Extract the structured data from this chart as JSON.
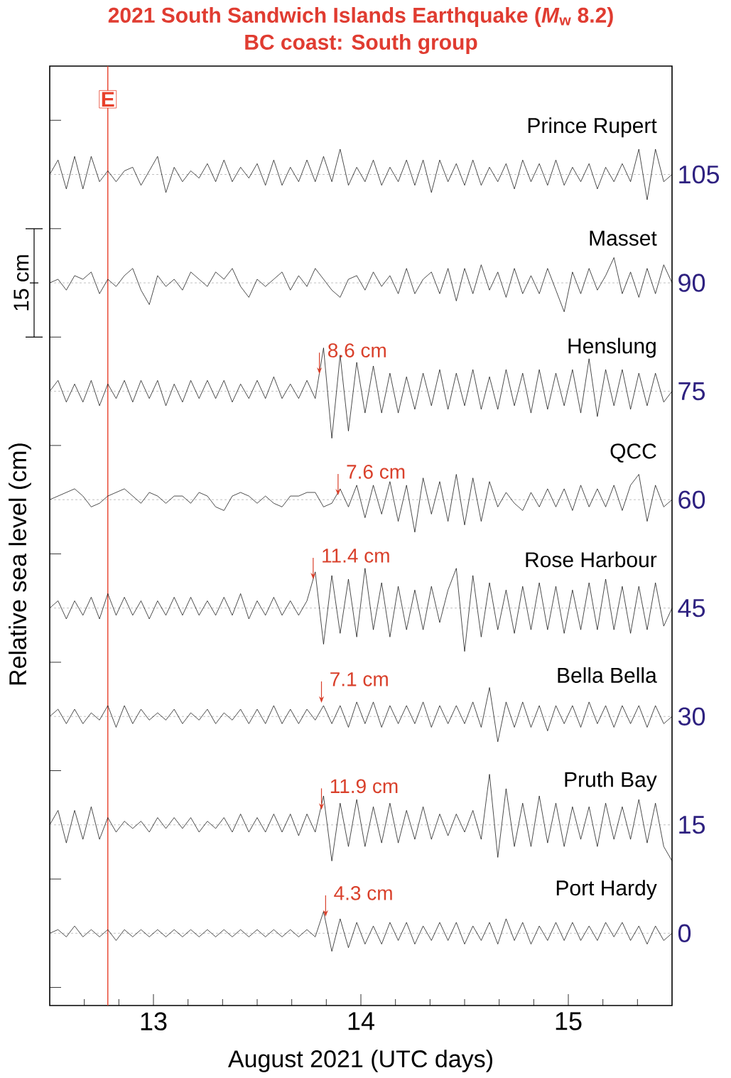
{
  "chart_data": {
    "type": "line",
    "title": "2021 South Sandwich Islands Earthquake (*M*$_{w}$ 8.2)",
    "subtitle": "BC coast: South group",
    "xlabel": "August 2021  (UTC days)",
    "ylabel": "Relative sea level (cm)",
    "xlim": [
      12.5,
      15.5
    ],
    "ylim": [
      -10,
      120
    ],
    "xticks": [
      {
        "value": 12.6667,
        "label": null
      },
      {
        "value": 12.8333,
        "label": null
      },
      13,
      {
        "value": 13.1667,
        "label": null
      },
      {
        "value": 13.3333,
        "label": null
      },
      {
        "value": 13.5,
        "label": null
      },
      {
        "value": 13.6667,
        "label": null
      },
      {
        "value": 13.8333,
        "label": null
      },
      14,
      {
        "value": 14.1667,
        "label": null
      },
      {
        "value": 14.3333,
        "label": null
      },
      {
        "value": 14.5,
        "label": null
      },
      {
        "value": 14.6667,
        "label": null
      },
      {
        "value": 14.8333,
        "label": null
      },
      15,
      {
        "value": 15.1667,
        "label": null
      },
      {
        "value": 15.3333,
        "label": null
      }
    ],
    "yticks": [
      {
        "value": -7.5,
        "label": null
      },
      0,
      {
        "value": 7.5,
        "label": null
      },
      15,
      {
        "value": 22.5,
        "label": null
      },
      30,
      {
        "value": 37.5,
        "label": null
      },
      45,
      {
        "value": 52.5,
        "label": null
      },
      60,
      {
        "value": 67.5,
        "label": null
      },
      75,
      {
        "value": 82.5,
        "label": null
      },
      90,
      {
        "value": 97.5,
        "label": null
      },
      105,
      {
        "value": 112.5,
        "label": null
      }
    ],
    "line_style": "solid",
    "x": [
      12.5,
      12.54,
      12.58,
      12.62,
      12.66,
      12.7,
      12.74,
      12.78,
      12.82,
      12.86,
      12.9,
      12.94,
      12.98,
      13.02,
      13.06,
      13.1,
      13.14,
      13.18,
      13.22,
      13.26,
      13.3,
      13.34,
      13.38,
      13.42,
      13.46,
      13.5,
      13.54,
      13.58,
      13.62,
      13.66,
      13.7,
      13.74,
      13.78,
      13.82,
      13.86,
      13.9,
      13.94,
      13.98,
      14.02,
      14.06,
      14.1,
      14.14,
      14.18,
      14.22,
      14.26,
      14.3,
      14.34,
      14.38,
      14.42,
      14.46,
      14.5,
      14.54,
      14.58,
      14.62,
      14.66,
      14.7,
      14.74,
      14.78,
      14.82,
      14.86,
      14.9,
      14.94,
      14.98,
      15.02,
      15.06,
      15.1,
      15.14,
      15.18,
      15.22,
      15.26,
      15.3,
      15.34,
      15.38,
      15.42,
      15.46,
      15.5
    ],
    "series": [
      {
        "name": "Prince Rupert",
        "color": "#000000",
        "values": [
          105,
          107,
          103,
          107.5,
          103,
          107.5,
          104,
          105.5,
          104,
          105.5,
          106,
          103.5,
          105.5,
          107.5,
          102.5,
          106,
          104,
          105.5,
          104.5,
          106.5,
          104,
          107,
          104,
          106,
          104.5,
          106.5,
          103.5,
          107,
          103.5,
          106,
          104,
          107,
          104,
          107.5,
          104,
          108.5,
          103.5,
          106,
          104,
          107,
          103.5,
          106,
          104,
          107,
          103.5,
          107,
          102.5,
          107,
          104,
          106.5,
          103.5,
          107,
          103.5,
          106,
          104,
          106.5,
          103,
          107,
          104,
          106.5,
          103.5,
          107,
          103.5,
          106,
          104,
          106.5,
          103,
          106,
          104,
          106.5,
          104,
          108.5,
          101.5,
          108.5,
          104,
          105
        ]
      },
      {
        "name": "Masset",
        "color": "#000000",
        "values": [
          90,
          90.5,
          89,
          91,
          90.5,
          91.5,
          88.5,
          90.5,
          89.5,
          91,
          92,
          89,
          87,
          91,
          89.5,
          90.5,
          89,
          91.5,
          90.5,
          89.5,
          91.5,
          90.5,
          92,
          89.5,
          88,
          90.5,
          89.5,
          90.5,
          91.5,
          89,
          91,
          89.5,
          92,
          90.5,
          89,
          88,
          90.5,
          91,
          89,
          91.5,
          89.5,
          91,
          88.5,
          92,
          88.5,
          90.5,
          91.5,
          88.5,
          92,
          87.5,
          92,
          88.5,
          92.5,
          89,
          91.5,
          88,
          92,
          88.5,
          91,
          88.5,
          92,
          89,
          86,
          91.5,
          88.5,
          92,
          89,
          91,
          93.5,
          88.5,
          91.5,
          88,
          92,
          88.5,
          92.5,
          90
        ]
      },
      {
        "name": "Henslung",
        "color": "#000000",
        "values": [
          75,
          76.5,
          73.5,
          76,
          73.5,
          76.5,
          73,
          76,
          74,
          76.5,
          73.5,
          76.5,
          74,
          76.5,
          73,
          76,
          73.5,
          76.5,
          74,
          76.5,
          74,
          76.5,
          73.5,
          76,
          74,
          76.5,
          74,
          77,
          74,
          76,
          74,
          76.5,
          74,
          81,
          68.5,
          80,
          69.5,
          79,
          72,
          78.5,
          72,
          77.5,
          72,
          77,
          72.5,
          77.5,
          73,
          78,
          72.5,
          77.5,
          73,
          78,
          72.5,
          77,
          72.5,
          78,
          73,
          77.5,
          72,
          78,
          72.5,
          77.5,
          73,
          78,
          72,
          79.5,
          71.5,
          78,
          73,
          78,
          72.5,
          77.5,
          73,
          77.5,
          73.5,
          75
        ]
      },
      {
        "name": "QCC",
        "color": "#000000",
        "values": [
          60,
          60.5,
          61,
          61.5,
          60.5,
          59,
          59.5,
          60.5,
          61,
          61.5,
          60.5,
          59.5,
          61,
          60.5,
          59.5,
          60.5,
          60.5,
          59.5,
          61,
          60.5,
          59,
          58.5,
          60.5,
          61,
          60.5,
          59.5,
          60.5,
          59.5,
          59,
          60.5,
          60.5,
          61,
          61,
          59,
          59.5,
          61.5,
          59,
          62,
          57.5,
          62,
          58,
          62.5,
          57,
          62,
          55.5,
          63,
          58,
          62.5,
          57,
          63.5,
          56.5,
          63,
          57,
          62.5,
          59,
          61,
          59.5,
          58.5,
          61,
          59,
          61.5,
          59,
          61.5,
          58.5,
          62,
          59,
          61.5,
          59,
          62,
          58.5,
          62,
          63.5,
          57,
          62,
          59,
          60
        ]
      },
      {
        "name": "Rose Harbour",
        "color": "#000000",
        "values": [
          45,
          46,
          43.5,
          46,
          44,
          46.5,
          43.5,
          47,
          44,
          46.5,
          44,
          46,
          43.5,
          46,
          44,
          46.5,
          44,
          46.5,
          44,
          46,
          44,
          46.5,
          44,
          47,
          43.5,
          46,
          44,
          46.5,
          44,
          46,
          44,
          46,
          50,
          40,
          49.5,
          41.5,
          49,
          41,
          50.5,
          42,
          48.5,
          41,
          48,
          42,
          47.5,
          42,
          48,
          43,
          47.5,
          50.5,
          39,
          49.5,
          41,
          48.5,
          42,
          47.5,
          41.5,
          48,
          42,
          48.5,
          42,
          48,
          41.5,
          47.5,
          42,
          48.5,
          42,
          49,
          42,
          48,
          41.5,
          48,
          42,
          48.5,
          42.5,
          45
        ]
      },
      {
        "name": "Bella Bella",
        "color": "#000000",
        "values": [
          30,
          31,
          29,
          31,
          29,
          30.5,
          29.5,
          31.5,
          28.5,
          31.5,
          29,
          31,
          29.5,
          30.5,
          29.5,
          31,
          29,
          30.5,
          29.5,
          31,
          29,
          30.5,
          29.5,
          31,
          29,
          31,
          29,
          31.5,
          29,
          31,
          29,
          31,
          29.5,
          31.5,
          29,
          31.5,
          28.5,
          32,
          29,
          32,
          28.5,
          31.5,
          29,
          31.5,
          29,
          32,
          28.5,
          31.5,
          29,
          31.5,
          29,
          32,
          28.5,
          34,
          26.5,
          32,
          28.5,
          32,
          28.5,
          31.5,
          28,
          31.5,
          29,
          31.5,
          28.5,
          32,
          29,
          31.5,
          28.5,
          31.5,
          29,
          31.5,
          28.5,
          31.5,
          29,
          30
        ]
      },
      {
        "name": "Pruth Bay",
        "color": "#000000",
        "values": [
          15,
          17,
          12.5,
          17,
          13,
          17.5,
          13,
          16,
          14,
          15.5,
          14.5,
          15.5,
          14,
          16,
          14.5,
          16,
          14.5,
          16,
          14,
          15.5,
          14.5,
          16,
          14,
          16.5,
          14,
          16,
          14,
          16.5,
          14,
          16.5,
          13.5,
          16.5,
          14,
          19,
          10,
          18,
          12,
          18.5,
          12,
          17.5,
          12.5,
          18,
          12.5,
          17,
          13,
          17.5,
          13,
          16.5,
          13.5,
          16.5,
          14,
          17,
          13,
          22,
          10.5,
          20,
          12,
          18,
          12,
          19,
          12.5,
          18,
          12,
          17.5,
          13,
          17.5,
          12,
          18,
          13,
          17.5,
          13,
          18.5,
          12.5,
          18,
          12,
          10
        ]
      },
      {
        "name": "Port Hardy",
        "color": "#000000",
        "values": [
          0,
          0.5,
          -0.5,
          1,
          -0.5,
          0.5,
          -0.5,
          0.5,
          -1,
          0.5,
          -0.5,
          0.5,
          -0.5,
          0.5,
          -0.5,
          0.5,
          -0.5,
          0.5,
          -0.5,
          0.5,
          -0.5,
          0.5,
          -0.5,
          0.5,
          -0.5,
          0.5,
          -0.5,
          0.5,
          -0.5,
          0.5,
          -0.5,
          0.5,
          -0.5,
          3,
          -2.5,
          2,
          -2,
          1.5,
          -1.5,
          1,
          -1.5,
          1.5,
          -1,
          1.5,
          -1.5,
          1,
          -1,
          1.5,
          -1,
          1.5,
          -1.5,
          1,
          -1,
          1.5,
          -1.5,
          2,
          -1,
          1.5,
          -1.5,
          1,
          -1,
          1.5,
          -1,
          1.5,
          -1,
          1,
          -1,
          1.5,
          -0.5,
          1.5,
          -1,
          1,
          -1.5,
          1,
          -1,
          0
        ]
      }
    ],
    "ref_lines": [
      {
        "axis": "x",
        "value": 12.78,
        "label": "E",
        "color": "#e8412c"
      },
      {
        "axis": "y",
        "value": 105,
        "color": "#808080",
        "line_style": "dashed"
      },
      {
        "axis": "y",
        "value": 90,
        "color": "#808080",
        "line_style": "dashed"
      },
      {
        "axis": "y",
        "value": 75,
        "color": "#808080",
        "line_style": "dashed"
      },
      {
        "axis": "y",
        "value": 60,
        "color": "#808080",
        "line_style": "dashed"
      },
      {
        "axis": "y",
        "value": 45,
        "color": "#808080",
        "line_style": "dashed"
      },
      {
        "axis": "y",
        "value": 30,
        "color": "#808080",
        "line_style": "dashed"
      },
      {
        "axis": "y",
        "value": 15,
        "color": "#808080",
        "line_style": "dashed"
      },
      {
        "axis": "y",
        "value": 0,
        "color": "#808080",
        "line_style": "dashed"
      }
    ],
    "annotations": [
      "15 cm",
      {
        "text": "8.6 cm",
        "x": 13.8,
        "y": 77.4
      },
      {
        "text": "7.6 cm",
        "x": 13.89,
        "y": 60.6
      },
      {
        "text": "11.4 cm",
        "x": 13.77,
        "y": 49
      },
      {
        "text": "7.1 cm",
        "x": 13.81,
        "y": 31.9
      },
      {
        "text": "11.9 cm",
        "x": 13.81,
        "y": 17.1
      },
      {
        "text": "4.3 cm",
        "x": 13.83,
        "y": 2.3
      }
    ]
  }
}
